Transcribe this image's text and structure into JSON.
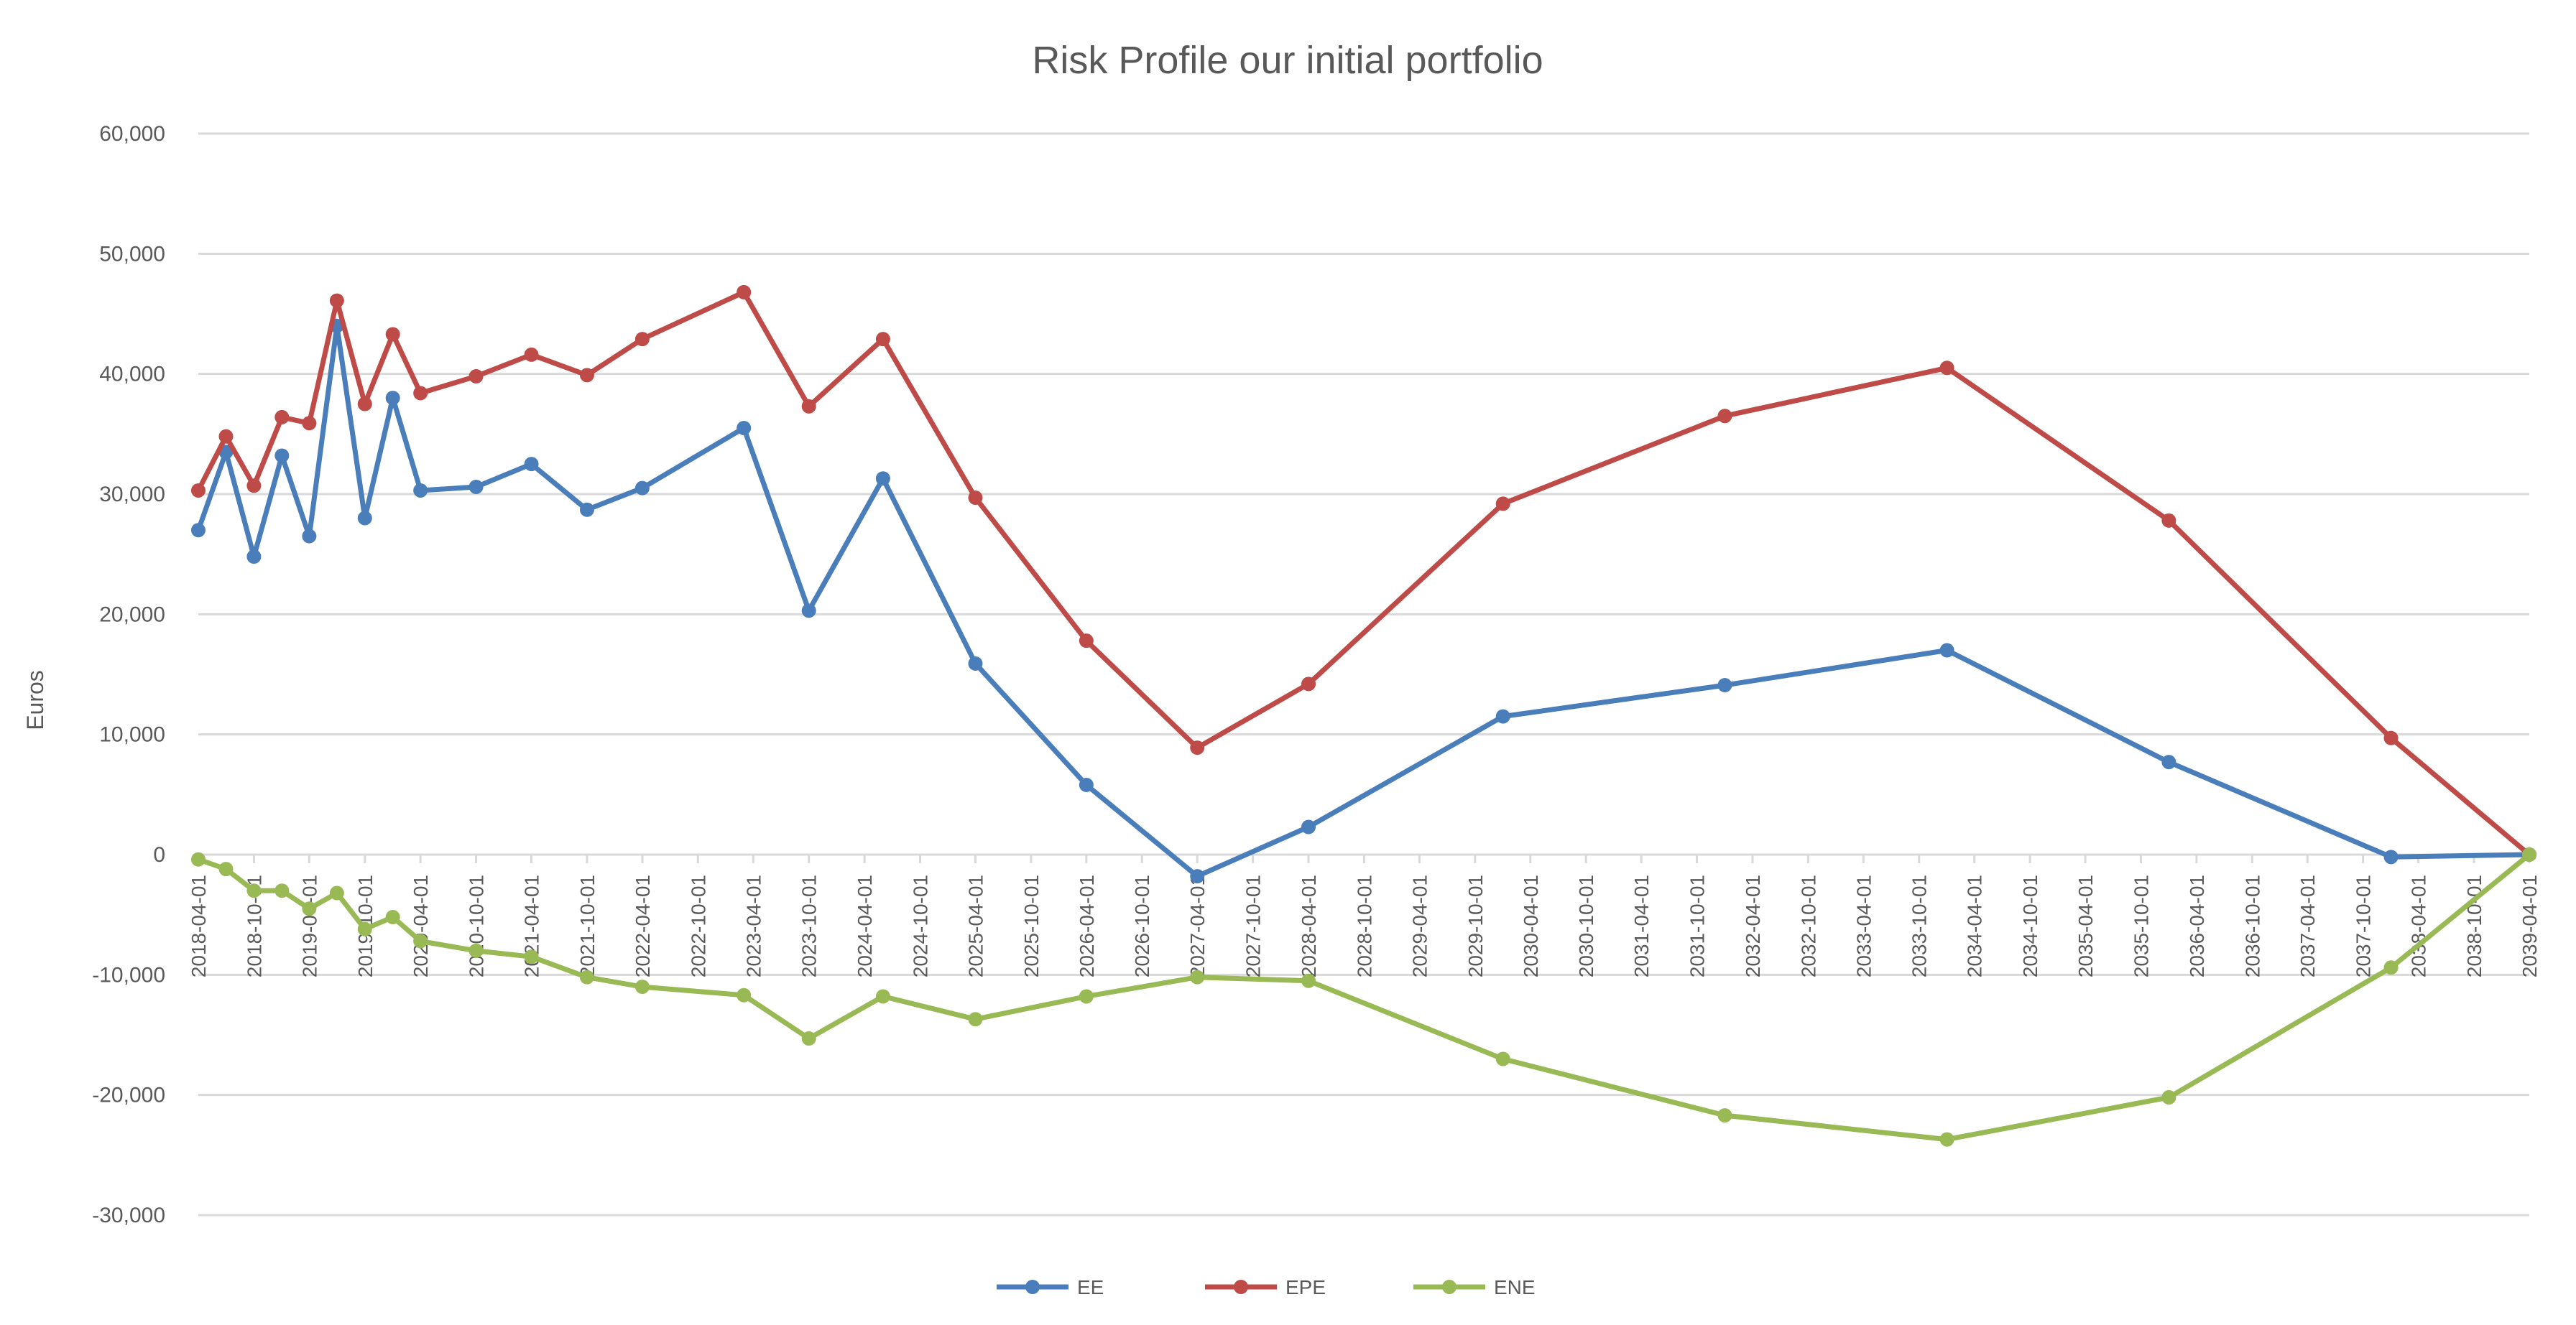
{
  "colors": {
    "EE": "#4a7ebb",
    "EPE": "#be4b48",
    "ENE": "#98b954",
    "grid": "#d9d9d9",
    "text": "#595959"
  },
  "chart_data": {
    "type": "line",
    "title": "Risk Profile our initial portfolio",
    "ylabel": "Euros",
    "xlabel": "",
    "ylim": [
      -30000,
      60000
    ],
    "yticks": [
      60000,
      50000,
      40000,
      30000,
      20000,
      10000,
      0,
      -10000,
      -20000,
      -30000
    ],
    "ytick_labels": [
      "60,000",
      "50,000",
      "40,000",
      "30,000",
      "20,000",
      "10,000",
      "0",
      "-10,000",
      "-20,000",
      "-30,000"
    ],
    "xlim": [
      "2018-04-01",
      "2039-04-01"
    ],
    "xtick_labels": [
      "2018-04-01",
      "2018-10-01",
      "2019-04-01",
      "2019-10-01",
      "2020-04-01",
      "2020-10-01",
      "2021-04-01",
      "2021-10-01",
      "2022-04-01",
      "2022-10-01",
      "2023-04-01",
      "2023-10-01",
      "2024-04-01",
      "2024-10-01",
      "2025-04-01",
      "2025-10-01",
      "2026-04-01",
      "2026-10-01",
      "2027-04-01",
      "2027-10-01",
      "2028-04-01",
      "2028-10-01",
      "2029-04-01",
      "2029-10-01",
      "2030-04-01",
      "2030-10-01",
      "2031-04-01",
      "2031-10-01",
      "2032-04-01",
      "2032-10-01",
      "2033-04-01",
      "2033-10-01",
      "2034-04-01",
      "2034-10-01",
      "2035-04-01",
      "2035-10-01",
      "2036-04-01",
      "2036-10-01",
      "2037-04-01",
      "2037-10-01",
      "2038-04-01",
      "2038-10-01",
      "2039-04-01"
    ],
    "grid": true,
    "legend_position": "bottom",
    "x": [
      "2018-04-01",
      "2018-07-01",
      "2018-10-01",
      "2019-01-01",
      "2019-04-01",
      "2019-07-01",
      "2019-10-01",
      "2020-01-01",
      "2020-04-01",
      "2020-10-01",
      "2021-04-01",
      "2021-10-01",
      "2022-04-01",
      "2023-03-01",
      "2023-10-01",
      "2024-06-01",
      "2025-04-01",
      "2026-04-01",
      "2027-04-01",
      "2028-04-01",
      "2030-01-01",
      "2032-01-01",
      "2034-01-01",
      "2036-01-01",
      "2038-01-01",
      "2039-04-01"
    ],
    "series": [
      {
        "name": "EE",
        "values": [
          27000,
          33500,
          24800,
          33200,
          26500,
          44000,
          28000,
          38000,
          30300,
          30600,
          32500,
          28700,
          30500,
          35500,
          20300,
          31300,
          15900,
          5800,
          -1800,
          2300,
          11500,
          14100,
          17000,
          7700,
          -200,
          0
        ]
      },
      {
        "name": "EPE",
        "values": [
          30300,
          34800,
          30700,
          36400,
          35900,
          46100,
          37500,
          43300,
          38400,
          39800,
          41600,
          39900,
          42900,
          46800,
          37300,
          42900,
          29700,
          17800,
          8900,
          14200,
          29200,
          36500,
          40500,
          27800,
          9700,
          0
        ]
      },
      {
        "name": "ENE",
        "values": [
          -400,
          -1200,
          -3000,
          -3000,
          -4500,
          -3200,
          -6200,
          -5200,
          -7200,
          -8000,
          -8500,
          -10200,
          -11000,
          -11700,
          -15300,
          -11800,
          -13700,
          -11800,
          -10200,
          -10500,
          -17000,
          -21700,
          -23700,
          -20200,
          -9400,
          0
        ]
      }
    ]
  }
}
